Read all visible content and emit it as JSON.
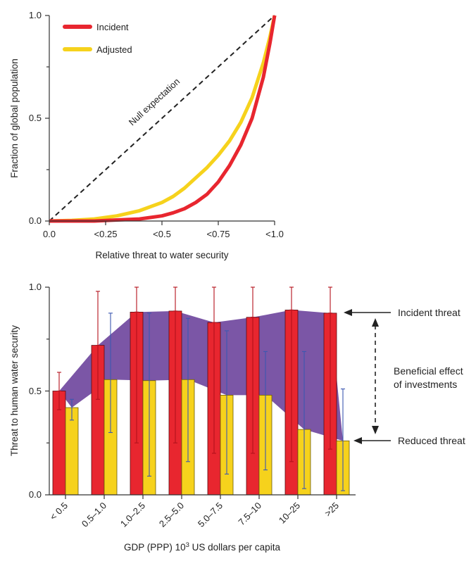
{
  "colors": {
    "incident": "#e8262f",
    "adjusted": "#f6d21c",
    "band": "#7b56a6",
    "error_incident": "#b3121c",
    "error_adjusted": "#3c58b0",
    "axis": "#333333"
  },
  "chart_data": [
    {
      "type": "line",
      "xlabel": "Relative threat to water security",
      "ylabel": "Fraction of global population",
      "xlim": [
        0,
        1
      ],
      "ylim": [
        0,
        1
      ],
      "x_tick_labels": [
        "0.0",
        "<0.25",
        "<0.5",
        "<0.75",
        "<1.0"
      ],
      "y_tick_labels": [
        "0.0",
        "0.5",
        "1.0"
      ],
      "legend_position": "top-left",
      "annotation": "Null expectation",
      "x": [
        0,
        0.1,
        0.2,
        0.3,
        0.4,
        0.5,
        0.55,
        0.6,
        0.65,
        0.7,
        0.75,
        0.8,
        0.85,
        0.9,
        0.95,
        0.98,
        1.0
      ],
      "series": [
        {
          "name": "Incident",
          "values": [
            0,
            0,
            0,
            0.005,
            0.01,
            0.025,
            0.04,
            0.06,
            0.09,
            0.13,
            0.19,
            0.27,
            0.37,
            0.5,
            0.7,
            0.87,
            1.0
          ]
        },
        {
          "name": "Adjusted",
          "values": [
            0,
            0.003,
            0.01,
            0.025,
            0.05,
            0.09,
            0.12,
            0.16,
            0.21,
            0.26,
            0.32,
            0.39,
            0.48,
            0.6,
            0.77,
            0.9,
            1.0
          ]
        },
        {
          "name": "Null expectation",
          "values": [
            0,
            0.1,
            0.2,
            0.3,
            0.4,
            0.5,
            0.55,
            0.6,
            0.65,
            0.7,
            0.75,
            0.8,
            0.85,
            0.9,
            0.95,
            0.98,
            1.0
          ]
        }
      ]
    },
    {
      "type": "bar",
      "xlabel": "GDP (PPP) 10",
      "xlabel_sup": "3",
      "xlabel_rest": " US dollars per capita",
      "ylabel": "Threat to human water security",
      "ylim": [
        0,
        1
      ],
      "y_tick_labels": [
        "0.0",
        "0.5",
        "1.0"
      ],
      "categories": [
        "< 0.5",
        "0.5–1.0",
        "1.0–2.5",
        "2.5–5.0",
        "5.0–7.5",
        "7.5–10",
        "10–25",
        ">25"
      ],
      "series": [
        {
          "name": "Incident threat",
          "values": [
            0.5,
            0.72,
            0.88,
            0.885,
            0.83,
            0.855,
            0.89,
            0.875
          ],
          "err_high": [
            0.59,
            0.98,
            1.0,
            1.0,
            1.0,
            1.0,
            1.0,
            1.0
          ],
          "err_low": [
            0.41,
            0.46,
            0.25,
            0.25,
            0.2,
            0.2,
            0.16,
            0.22
          ]
        },
        {
          "name": "Reduced threat",
          "values": [
            0.42,
            0.555,
            0.55,
            0.555,
            0.48,
            0.48,
            0.315,
            0.26
          ],
          "err_high": [
            0.46,
            0.875,
            0.875,
            0.85,
            0.79,
            0.69,
            0.69,
            0.51
          ],
          "err_low": [
            0.36,
            0.3,
            0.09,
            0.16,
            0.1,
            0.12,
            0.03,
            0.02
          ]
        }
      ],
      "annotations": {
        "incident": "Incident threat",
        "effect_line1": "Beneficial effect",
        "effect_line2": "of investments",
        "reduced": "Reduced threat"
      }
    }
  ]
}
